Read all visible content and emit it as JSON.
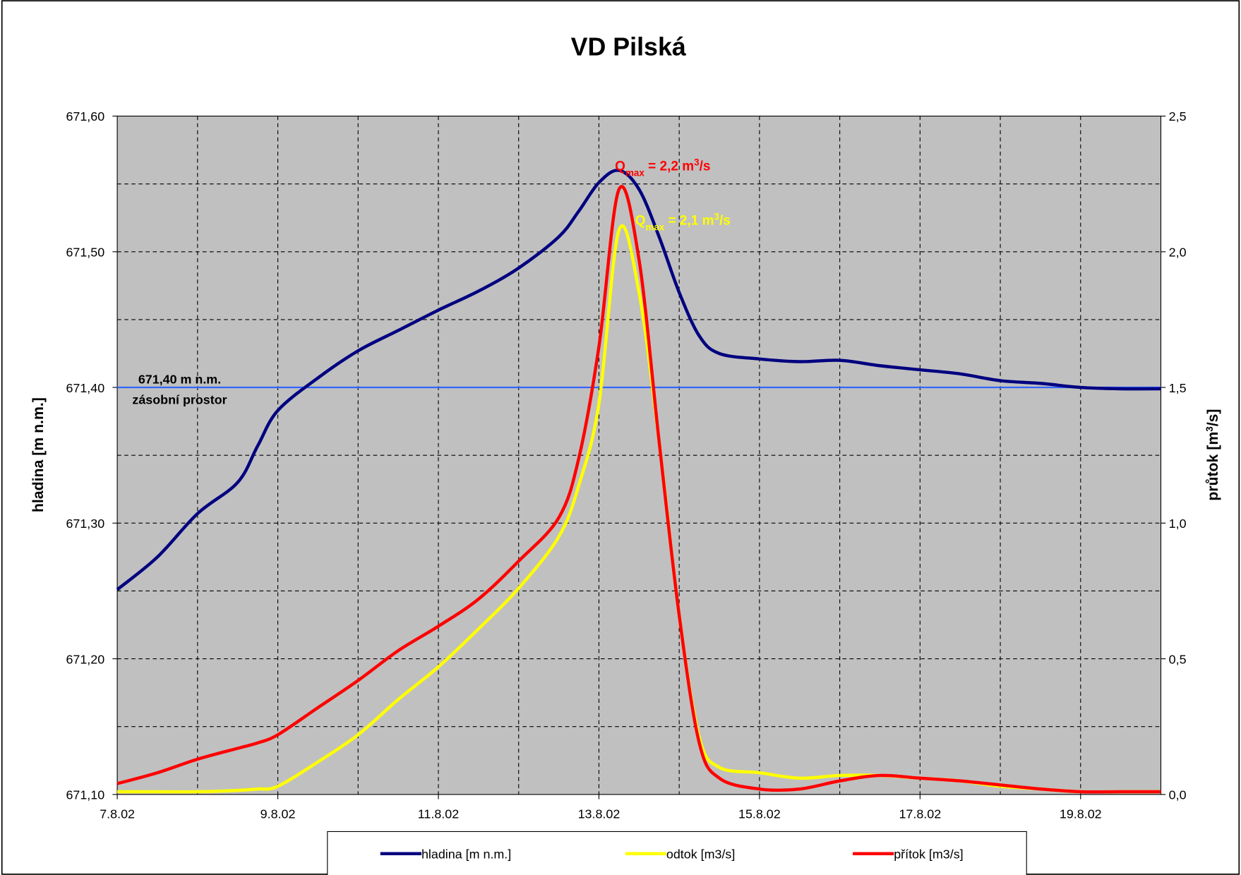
{
  "chart_data": {
    "type": "line",
    "title": "VD Pilská",
    "y_label": "hladina [m n.m.]",
    "y2_label_parts": [
      "průtok [m",
      "3",
      "/s]"
    ],
    "x": [
      7,
      7.5,
      8,
      8.5,
      8.75,
      9,
      9.5,
      10,
      10.5,
      11,
      11.5,
      12,
      12.5,
      12.75,
      13,
      13.25,
      13.5,
      13.75,
      14,
      14.25,
      14.5,
      15,
      15.5,
      16,
      16.5,
      17,
      17.5,
      18,
      18.5,
      19,
      19.5,
      20
    ],
    "series": [
      {
        "name": "hladina [m n.m.]",
        "color": "#000080",
        "axis": "y",
        "values": [
          671.251,
          671.275,
          671.307,
          671.33,
          671.357,
          671.383,
          671.407,
          671.427,
          671.442,
          671.457,
          671.471,
          671.488,
          671.511,
          671.53,
          671.551,
          671.56,
          671.546,
          671.511,
          671.47,
          671.438,
          671.425,
          671.421,
          671.419,
          671.42,
          671.416,
          671.413,
          671.41,
          671.405,
          671.403,
          671.4,
          671.399,
          671.399
        ]
      },
      {
        "name": "odtok [m3/s]",
        "color": "#ffff00",
        "axis": "y2",
        "values": [
          0.01,
          0.01,
          0.01,
          0.015,
          0.02,
          0.03,
          0.12,
          0.22,
          0.35,
          0.47,
          0.61,
          0.76,
          0.95,
          1.14,
          1.44,
          2.08,
          1.85,
          1.3,
          0.66,
          0.21,
          0.1,
          0.08,
          0.06,
          0.07,
          0.07,
          0.06,
          0.05,
          0.03,
          0.02,
          0.01,
          0.01,
          0.01
        ]
      },
      {
        "name": "přítok [m3/s]",
        "color": "#ff0000",
        "axis": "y2",
        "values": [
          0.04,
          0.08,
          0.13,
          0.17,
          0.19,
          0.22,
          0.32,
          0.42,
          0.53,
          0.62,
          0.72,
          0.86,
          1.02,
          1.24,
          1.65,
          2.23,
          1.97,
          1.3,
          0.66,
          0.19,
          0.06,
          0.02,
          0.02,
          0.05,
          0.07,
          0.06,
          0.05,
          0.035,
          0.02,
          0.01,
          0.01,
          0.01
        ]
      }
    ],
    "xlim": [
      7,
      20
    ],
    "xticks": [
      {
        "value": 7,
        "label": "7.8.02"
      },
      {
        "value": 9,
        "label": "9.8.02"
      },
      {
        "value": 11,
        "label": "11.8.02"
      },
      {
        "value": 13,
        "label": "13.8.02"
      },
      {
        "value": 15,
        "label": "15.8.02"
      },
      {
        "value": 17,
        "label": "17.8.02"
      },
      {
        "value": 19,
        "label": "19.8.02"
      }
    ],
    "x_gridlines": [
      8,
      9,
      10,
      11,
      12,
      13,
      14,
      15,
      16,
      17,
      18,
      19
    ],
    "ylim": [
      671.1,
      671.6
    ],
    "yticks": [
      {
        "value": 671.1,
        "label": "671,10"
      },
      {
        "value": 671.2,
        "label": "671,20"
      },
      {
        "value": 671.3,
        "label": "671,30"
      },
      {
        "value": 671.4,
        "label": "671,40"
      },
      {
        "value": 671.5,
        "label": "671,50"
      },
      {
        "value": 671.6,
        "label": "671,60"
      }
    ],
    "y_gridlines": [
      671.15,
      671.2,
      671.25,
      671.3,
      671.35,
      671.45,
      671.5,
      671.55
    ],
    "y2lim": [
      0,
      2.5
    ],
    "y2ticks": [
      {
        "value": 0,
        "label": "0,0"
      },
      {
        "value": 0.5,
        "label": "0,5"
      },
      {
        "value": 1,
        "label": "1,0"
      },
      {
        "value": 1.5,
        "label": "1,5"
      },
      {
        "value": 2,
        "label": "2,0"
      },
      {
        "value": 2.5,
        "label": "2,5"
      }
    ],
    "reference_line": {
      "value": 671.4,
      "color": "#3366ff",
      "labels": [
        "671,40 m n.m.",
        "zásobní prostor"
      ]
    },
    "annotations": [
      {
        "parts": [
          "Q",
          "max",
          " = 2,2 m",
          "3",
          "/s"
        ],
        "color": "#ff0000",
        "x": 13.2,
        "y2": 2.3
      },
      {
        "parts": [
          "Q",
          "max",
          " = 2,1 m",
          "3",
          "/s"
        ],
        "color": "#ffff00",
        "x": 13.45,
        "y2": 2.1
      }
    ],
    "grid": true,
    "legend": "bottom"
  }
}
